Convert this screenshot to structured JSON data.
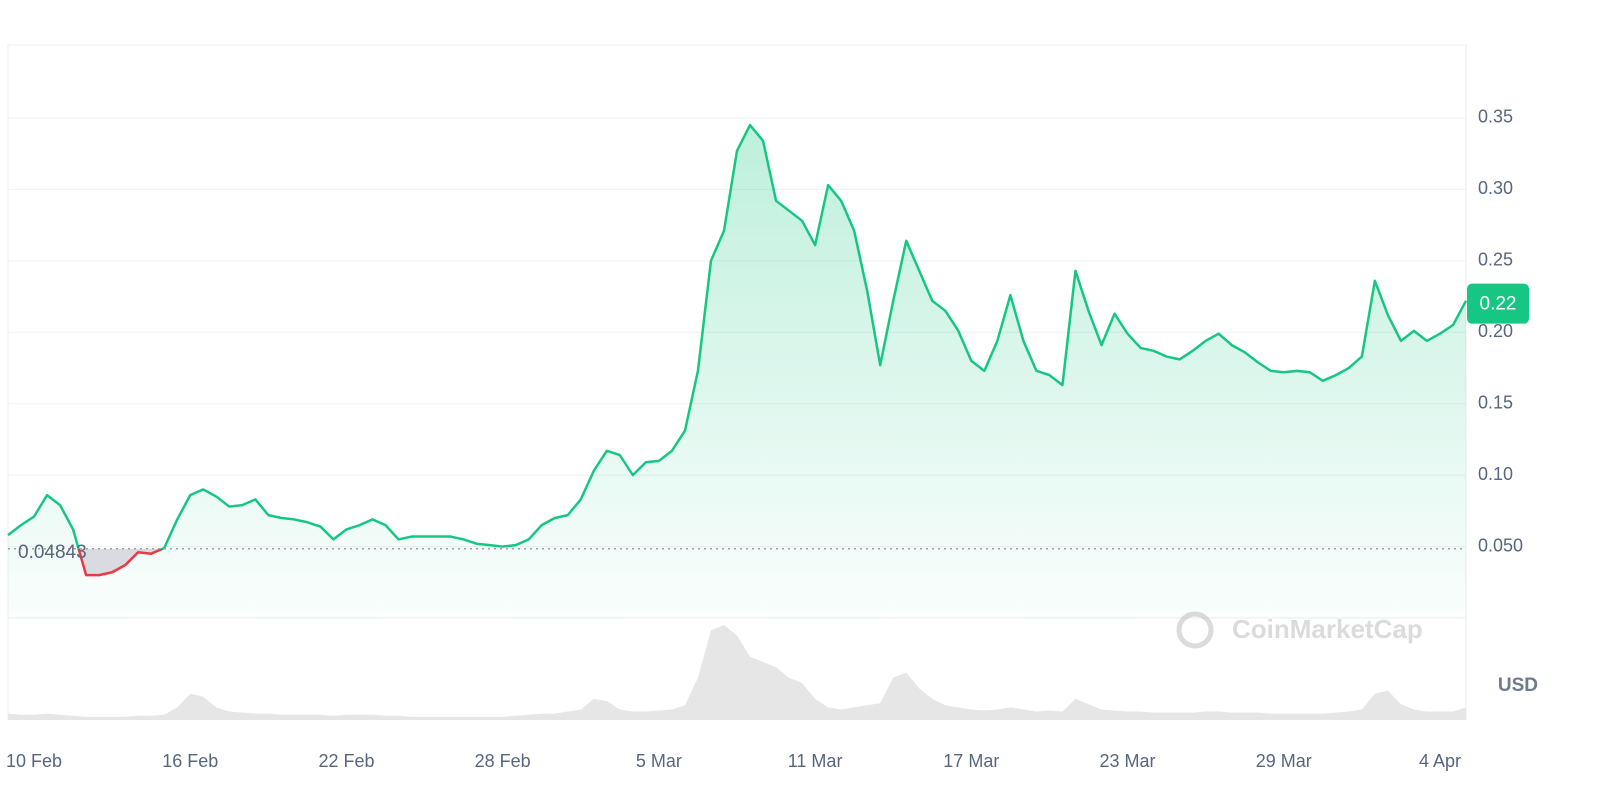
{
  "chart_data": {
    "type": "line",
    "categories": [
      null,
      null,
      "10 Feb",
      null,
      null,
      null,
      null,
      null,
      null,
      null,
      null,
      null,
      null,
      null,
      "16 Feb",
      null,
      null,
      null,
      null,
      null,
      null,
      null,
      null,
      null,
      null,
      null,
      "22 Feb",
      null,
      null,
      null,
      null,
      null,
      null,
      null,
      null,
      null,
      null,
      null,
      "28 Feb",
      null,
      null,
      null,
      null,
      null,
      null,
      null,
      null,
      null,
      null,
      null,
      "5 Mar",
      null,
      null,
      null,
      null,
      null,
      null,
      null,
      null,
      null,
      null,
      null,
      "11 Mar",
      null,
      null,
      null,
      null,
      null,
      null,
      null,
      null,
      null,
      null,
      null,
      "17 Mar",
      null,
      null,
      null,
      null,
      null,
      null,
      null,
      null,
      null,
      null,
      null,
      "23 Mar",
      null,
      null,
      null,
      null,
      null,
      null,
      null,
      null,
      null,
      null,
      null,
      "29 Mar",
      null,
      null,
      null,
      null,
      null,
      null,
      null,
      null,
      null,
      null,
      null,
      "4 Apr",
      null,
      null
    ],
    "series": [
      {
        "color": "#16c784",
        "below_color": "#ea3943",
        "values": [
          0.058,
          0.065,
          0.071,
          0.086,
          0.079,
          0.062,
          0.03,
          0.03,
          0.032,
          0.037,
          0.046,
          0.045,
          0.049,
          0.069,
          0.086,
          0.09,
          0.085,
          0.078,
          0.079,
          0.083,
          0.072,
          0.07,
          0.069,
          0.067,
          0.064,
          0.055,
          0.062,
          0.065,
          0.069,
          0.065,
          0.055,
          0.057,
          0.057,
          0.057,
          0.057,
          0.055,
          0.052,
          0.051,
          0.05,
          0.051,
          0.055,
          0.065,
          0.07,
          0.072,
          0.083,
          0.103,
          0.117,
          0.114,
          0.1,
          0.109,
          0.11,
          0.117,
          0.131,
          0.173,
          0.25,
          0.271,
          0.327,
          0.345,
          0.334,
          0.292,
          0.285,
          0.278,
          0.261,
          0.303,
          0.292,
          0.271,
          0.229,
          0.177,
          0.222,
          0.264,
          0.243,
          0.222,
          0.215,
          0.201,
          0.18,
          0.173,
          0.194,
          0.226,
          0.194,
          0.173,
          0.17,
          0.163,
          0.243,
          0.215,
          0.191,
          0.213,
          0.199,
          0.189,
          0.187,
          0.183,
          0.181,
          0.187,
          0.194,
          0.199,
          0.191,
          0.186,
          0.179,
          0.173,
          0.172,
          0.173,
          0.172,
          0.166,
          0.17,
          0.175,
          0.183,
          0.236,
          0.212,
          0.194,
          0.201,
          0.194,
          0.199,
          0.205,
          0.222
        ]
      }
    ],
    "volume": {
      "color": "#e6e6e6",
      "values": [
        6,
        5,
        5,
        6,
        5,
        4,
        3,
        3,
        3,
        3,
        4,
        4,
        5,
        12,
        25,
        22,
        12,
        8,
        7,
        6,
        6,
        5,
        5,
        5,
        5,
        4,
        5,
        5,
        5,
        4,
        4,
        3,
        3,
        3,
        3,
        3,
        3,
        3,
        3,
        4,
        5,
        6,
        6,
        8,
        10,
        20,
        18,
        10,
        8,
        8,
        9,
        10,
        14,
        40,
        85,
        90,
        80,
        60,
        55,
        50,
        40,
        35,
        20,
        12,
        10,
        12,
        14,
        16,
        40,
        45,
        30,
        20,
        14,
        12,
        10,
        9,
        10,
        12,
        10,
        8,
        9,
        8,
        20,
        15,
        10,
        9,
        8,
        8,
        7,
        7,
        7,
        7,
        8,
        8,
        7,
        7,
        7,
        6,
        6,
        6,
        6,
        6,
        7,
        8,
        10,
        25,
        28,
        15,
        10,
        8,
        8,
        8,
        12
      ]
    },
    "ylim": [
      0,
      0.4
    ],
    "yticks": [
      {
        "value": 0.05,
        "label": "0.050"
      },
      {
        "value": 0.1,
        "label": "0.10"
      },
      0.15,
      {
        "value": 0.2,
        "label": "0.20"
      },
      0.25,
      {
        "value": 0.3,
        "label": "0.30"
      },
      0.35
    ],
    "baseline": 0.04843,
    "last_price": 0.22,
    "currency": "USD",
    "watermark": "CoinMarketCap",
    "grid": true
  }
}
